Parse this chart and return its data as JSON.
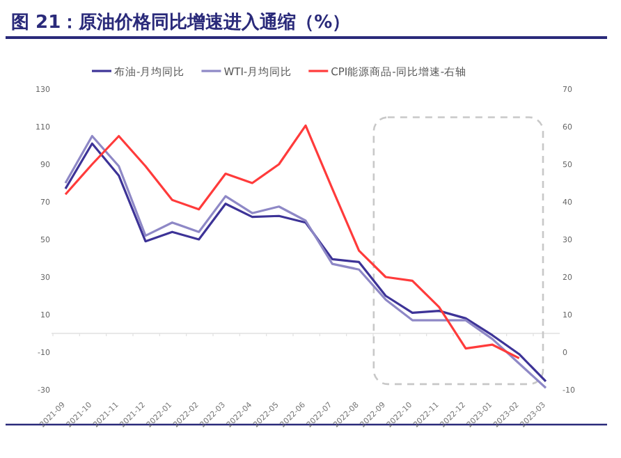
{
  "chart_data": {
    "type": "line",
    "title": "图 21：原油价格同比增速进入通缩（%）",
    "categories": [
      "2021-09",
      "2021-10",
      "2021-11",
      "2021-12",
      "2022-01",
      "2022-02",
      "2022-03",
      "2022-04",
      "2022-05",
      "2022-06",
      "2022-07",
      "2022-08",
      "2022-09",
      "2022-10",
      "2022-11",
      "2022-12",
      "2023-01",
      "2023-02",
      "2023-03"
    ],
    "series": [
      {
        "name": "布油-月均同比",
        "color": "#3d3397",
        "values": [
          77,
          101,
          84,
          49,
          54,
          50,
          69,
          62,
          62.5,
          59,
          39.5,
          38,
          20,
          11,
          12,
          8,
          -1,
          -11,
          -25.5
        ]
      },
      {
        "name": "WTI-月均同比",
        "color": "#8e88c6",
        "values": [
          80,
          105,
          89,
          52,
          59,
          54,
          73,
          64,
          67.5,
          60,
          37,
          34,
          18,
          7,
          7,
          7,
          -3,
          -16,
          -29
        ]
      },
      {
        "name": "CPI能源商品-同比增速-右轴",
        "color": "#ff3b3b",
        "axis": "y2",
        "values": [
          42,
          50,
          57.5,
          49.5,
          40.5,
          38,
          47.5,
          45,
          50,
          60.3,
          43.5,
          27,
          20,
          19,
          12,
          1,
          2,
          -1.6,
          null
        ]
      }
    ],
    "ylim": [
      -30,
      130
    ],
    "yticks": [
      -30,
      -10,
      10,
      30,
      50,
      70,
      90,
      110,
      130
    ],
    "y2lim": [
      -10,
      70
    ],
    "y2ticks": [
      -10,
      0,
      10,
      20,
      30,
      40,
      50,
      60,
      70
    ],
    "legend": "top",
    "grid": false
  }
}
